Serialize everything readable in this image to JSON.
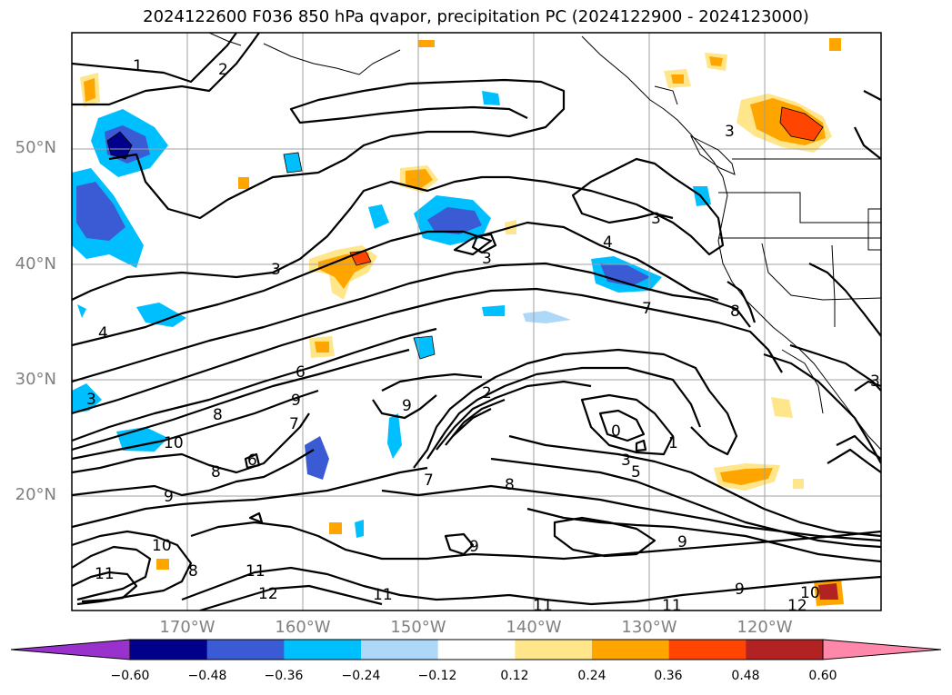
{
  "title": "2024122600 F036 850 hPa qvapor, precipitation PC (2024122900 - 2024123000)",
  "lat_labels": [
    "50°N",
    "40°N",
    "30°N",
    "20°N"
  ],
  "lon_labels": [
    "170°W",
    "160°W",
    "150°W",
    "140°W",
    "130°W",
    "120°W"
  ],
  "colorbar": {
    "ticks": [
      "−0.60",
      "−0.48",
      "−0.36",
      "−0.24",
      "−0.12",
      "0.12",
      "0.24",
      "0.36",
      "0.48",
      "0.60"
    ],
    "colors": [
      "#9932cc",
      "#00008b",
      "#3a5bd3",
      "#00bfff",
      "#add8f7",
      "#ffffff",
      "#ffe68a",
      "#ffa500",
      "#ff4500",
      "#b22222",
      "#ff88aa"
    ]
  },
  "contour_labels": [
    "1",
    "2",
    "3",
    "3",
    "3",
    "3",
    "3",
    "4",
    "4",
    "6",
    "7",
    "7",
    "7",
    "8",
    "8",
    "8",
    "8",
    "8",
    "9",
    "9",
    "9",
    "9",
    "9",
    "9",
    "10",
    "10",
    "10",
    "11",
    "11",
    "11",
    "11",
    "11",
    "12",
    "12",
    "0",
    "1",
    "2",
    "3",
    "6",
    "5",
    "3"
  ]
}
